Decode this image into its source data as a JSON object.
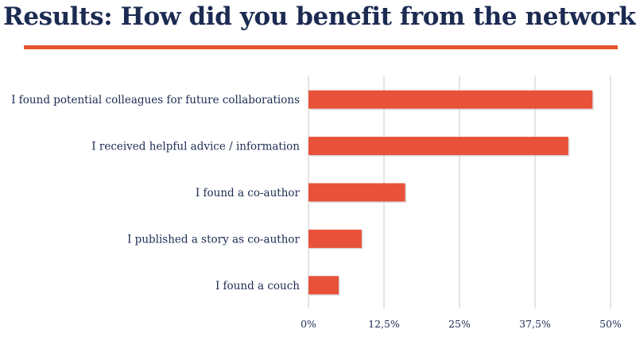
{
  "slide": {
    "title": "Results: How did you benefit from the network?"
  },
  "colors": {
    "title": "#1c2b52",
    "accent_rule": "#e8542f",
    "bar": "#e8513a",
    "gridline": "#c8c8c8",
    "text": "#1c2b52"
  },
  "chart_data": {
    "type": "bar",
    "orientation": "horizontal",
    "title": "",
    "xlabel": "",
    "ylabel": "",
    "categories": [
      "I found potential colleagues for future collaborations",
      "I received helpful advice / information",
      "I found a co-author",
      "I published a story as co-author",
      "I found a couch"
    ],
    "values": [
      47,
      43,
      16,
      8.8,
      5
    ],
    "value_unit": "percent",
    "xlim": [
      0,
      50
    ],
    "ticks": [
      0,
      12.5,
      25,
      37.5,
      50
    ],
    "tick_labels": [
      "0%",
      "12,5%",
      "25%",
      "37,5%",
      "50%"
    ],
    "grid": "vertical",
    "legend": "none"
  }
}
